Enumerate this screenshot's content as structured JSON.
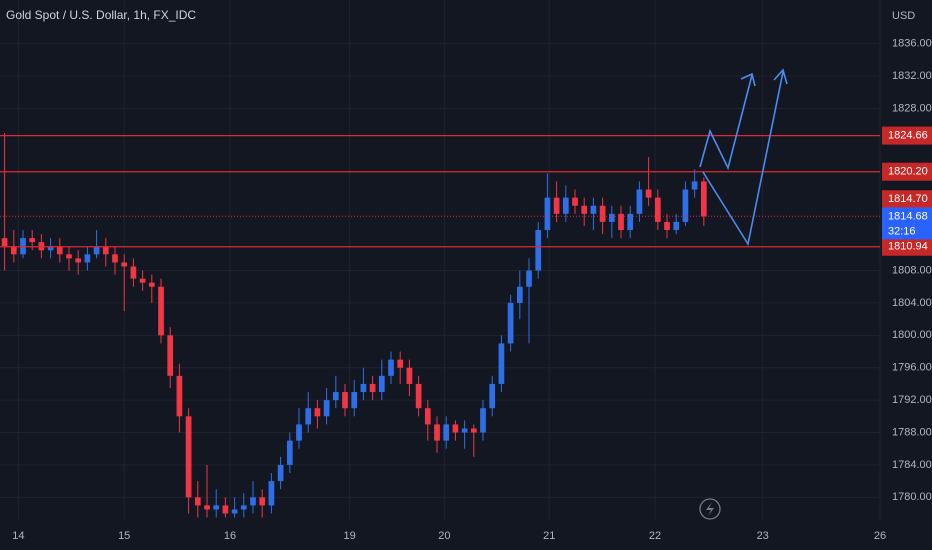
{
  "chart_data": {
    "type": "candlestick",
    "title": "Gold Spot / U.S. Dollar, 1h, FX_IDC",
    "currency": "USD",
    "countdown": "32:16",
    "open": [
      1812,
      1811,
      1810,
      1812,
      1811.5,
      1810.5,
      1811,
      1810,
      1809.5,
      1809,
      1810,
      1811,
      1810,
      1809,
      1808.5,
      1807,
      1806.5,
      1806,
      1800,
      1795,
      1790,
      1780,
      1779,
      1778.5,
      1779,
      1778,
      1778.5,
      1779,
      1780,
      1779,
      1782,
      1784,
      1787,
      1789,
      1791,
      1790,
      1792,
      1793,
      1791,
      1793,
      1794,
      1793,
      1795,
      1797,
      1796,
      1794,
      1791,
      1789,
      1787,
      1789,
      1788,
      1788.5,
      1788,
      1791,
      1794,
      1799,
      1804,
      1806,
      1808,
      1813,
      1817,
      1815,
      1817,
      1816,
      1815,
      1816,
      1814,
      1815,
      1813,
      1815,
      1818,
      1817,
      1814,
      1813,
      1814,
      1818,
      1819
    ],
    "high": [
      1825,
      1813,
      1813,
      1813,
      1812.5,
      1812,
      1812,
      1811,
      1810.5,
      1811,
      1813,
      1812,
      1811,
      1810,
      1809.5,
      1808,
      1807.5,
      1807,
      1801,
      1796.5,
      1791,
      1782,
      1784,
      1781,
      1780,
      1780,
      1780.5,
      1782,
      1781,
      1783,
      1785,
      1788,
      1791,
      1793,
      1792,
      1793.5,
      1795,
      1794,
      1794.5,
      1796,
      1795,
      1797,
      1798,
      1798,
      1797,
      1795,
      1792,
      1790,
      1790,
      1789.5,
      1789.5,
      1789,
      1792,
      1795,
      1800,
      1805,
      1808,
      1809.5,
      1814,
      1820,
      1819,
      1818.5,
      1818,
      1817,
      1817,
      1817,
      1816,
      1816,
      1816,
      1819,
      1822,
      1818,
      1815,
      1815,
      1819,
      1820.5,
      1819.5
    ],
    "low": [
      1808,
      1809,
      1809.5,
      1810.5,
      1809.5,
      1809.5,
      1809,
      1808,
      1807.5,
      1808,
      1809.5,
      1808.5,
      1807.5,
      1803,
      1806,
      1805.5,
      1804,
      1799,
      1793.5,
      1788,
      1778,
      1777.5,
      1777.5,
      1777.5,
      1777.5,
      1777.5,
      1777.5,
      1778,
      1777.5,
      1778,
      1781,
      1783,
      1786,
      1788,
      1788.5,
      1789,
      1791,
      1790,
      1790,
      1792,
      1792,
      1792,
      1794,
      1794,
      1792.5,
      1790,
      1787,
      1785.5,
      1786,
      1787,
      1786,
      1785,
      1787,
      1790,
      1793,
      1798,
      1802,
      1799,
      1807,
      1812,
      1814,
      1814,
      1815,
      1813.5,
      1813,
      1812.5,
      1812,
      1812,
      1812,
      1814,
      1816,
      1813,
      1812,
      1812.5,
      1813.5,
      1817,
      1813.5
    ],
    "close": [
      1811,
      1810,
      1812,
      1811.5,
      1810.5,
      1811,
      1810,
      1809.5,
      1809,
      1810,
      1811,
      1810,
      1809,
      1808.5,
      1807,
      1806.5,
      1806,
      1800,
      1795,
      1790,
      1780,
      1779,
      1778.5,
      1779,
      1778,
      1778.5,
      1779,
      1780,
      1779,
      1782,
      1784,
      1787,
      1789,
      1791,
      1790,
      1792,
      1793,
      1791,
      1793,
      1794,
      1793,
      1795,
      1797,
      1796,
      1794,
      1791,
      1789,
      1787,
      1789,
      1788,
      1788.5,
      1788,
      1791,
      1794,
      1799,
      1804,
      1806,
      1808,
      1813,
      1817,
      1815,
      1817,
      1816,
      1815,
      1816,
      1814,
      1815,
      1813,
      1815,
      1818,
      1817,
      1814,
      1813,
      1814,
      1818,
      1819,
      1814.68
    ],
    "up_color": "#2e6fe8",
    "down_color": "#f23645",
    "xlim": [
      -0.5,
      95.15
    ],
    "xticks": [
      {
        "value": 1.5,
        "label": "14"
      },
      {
        "value": 13,
        "label": "15"
      },
      {
        "value": 24.5,
        "label": "16"
      },
      {
        "value": 37.5,
        "label": "19"
      },
      {
        "value": 47.8,
        "label": "20"
      },
      {
        "value": 59.2,
        "label": "21"
      },
      {
        "value": 70.7,
        "label": "22"
      },
      {
        "value": 82.4,
        "label": "23"
      },
      {
        "value": 95.15,
        "label": "26"
      }
    ],
    "ylim": [
      1777.2,
      1841.4
    ],
    "yticks": [
      {
        "value": 1780,
        "label": "1780.00"
      },
      {
        "value": 1784,
        "label": "1784.00"
      },
      {
        "value": 1788,
        "label": "1788.00"
      },
      {
        "value": 1792,
        "label": "1792.00"
      },
      {
        "value": 1796,
        "label": "1796.00"
      },
      {
        "value": 1800,
        "label": "1800.00"
      },
      {
        "value": 1804,
        "label": "1804.00"
      },
      {
        "value": 1808,
        "label": "1808.00"
      },
      {
        "value": 1828,
        "label": "1828.00"
      },
      {
        "value": 1832,
        "label": "1832.00"
      },
      {
        "value": 1836,
        "label": "1836.00"
      }
    ],
    "grid": true,
    "levels": [
      {
        "value": 1824.66,
        "label": "1824.66",
        "style": "solid"
      },
      {
        "value": 1820.2,
        "label": "1820.20",
        "style": "solid"
      },
      {
        "value": 1814.7,
        "label": "1814.70",
        "style": "dotted"
      },
      {
        "value": 1810.94,
        "label": "1810.94",
        "style": "solid"
      }
    ],
    "level_color": "#e0282e"
  }
}
